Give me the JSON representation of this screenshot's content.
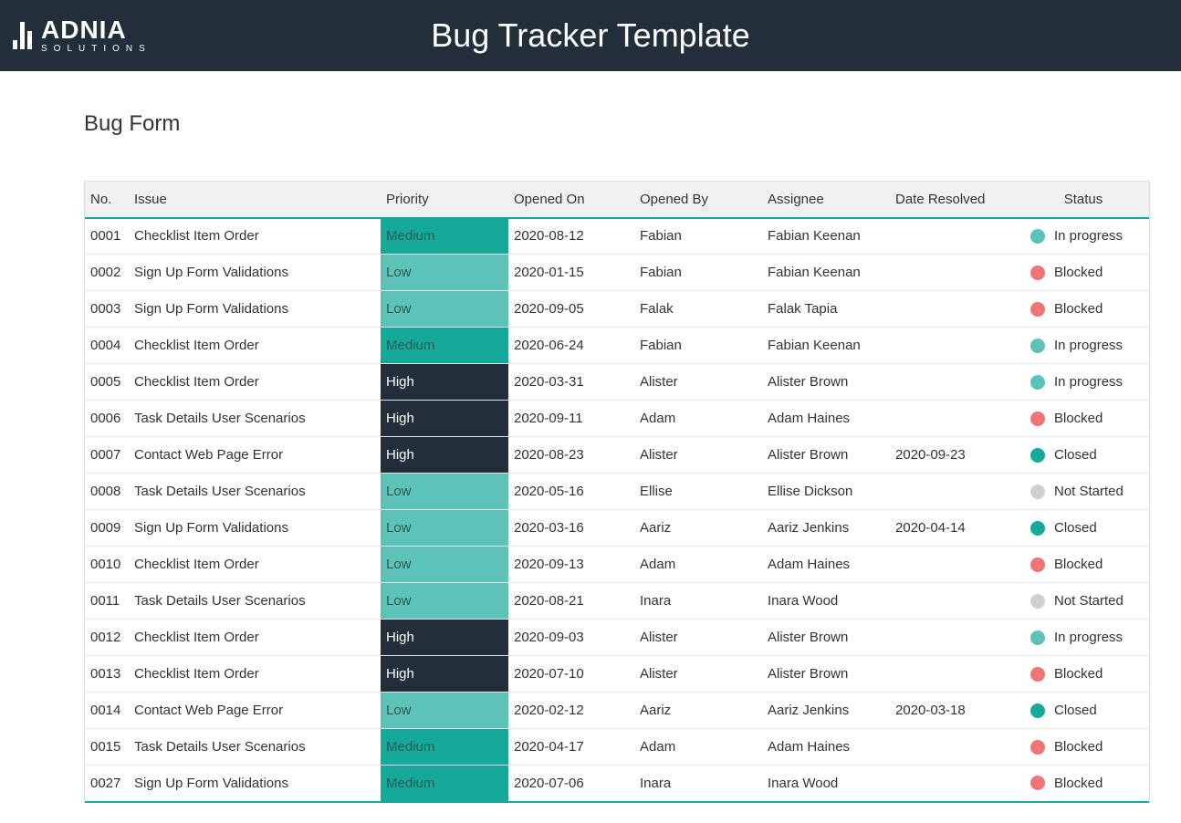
{
  "header": {
    "logo_main": "ADNIA",
    "logo_sub": "SOLUTIONS",
    "title": "Bug Tracker Template"
  },
  "section_title": "Bug Form",
  "colors": {
    "header_bg": "#222e3a",
    "accent": "#19a799",
    "priority_medium": "#14a999",
    "priority_low": "#5dc2b7",
    "priority_high": "#222e3a",
    "status_in_progress": "#5dc2b7",
    "status_blocked": "#f07575",
    "status_closed": "#14a999",
    "status_not_started": "#d0d0d0"
  },
  "table": {
    "columns": [
      "No.",
      "Issue",
      "Priority",
      "Opened On",
      "Opened By",
      "Assignee",
      "Date Resolved",
      "Status"
    ],
    "rows": [
      {
        "no": "0001",
        "issue": "Checklist Item Order",
        "priority": "Medium",
        "opened_on": "2020-08-12",
        "opened_by": "Fabian",
        "assignee": "Fabian Keenan",
        "date_resolved": "",
        "status": "In progress"
      },
      {
        "no": "0002",
        "issue": "Sign Up Form Validations",
        "priority": "Low",
        "opened_on": "2020-01-15",
        "opened_by": "Fabian",
        "assignee": "Fabian Keenan",
        "date_resolved": "",
        "status": "Blocked"
      },
      {
        "no": "0003",
        "issue": "Sign Up Form Validations",
        "priority": "Low",
        "opened_on": "2020-09-05",
        "opened_by": "Falak",
        "assignee": "Falak Tapia",
        "date_resolved": "",
        "status": "Blocked"
      },
      {
        "no": "0004",
        "issue": "Checklist Item Order",
        "priority": "Medium",
        "opened_on": "2020-06-24",
        "opened_by": "Fabian",
        "assignee": "Fabian Keenan",
        "date_resolved": "",
        "status": "In progress"
      },
      {
        "no": "0005",
        "issue": "Checklist Item Order",
        "priority": "High",
        "opened_on": "2020-03-31",
        "opened_by": "Alister",
        "assignee": "Alister Brown",
        "date_resolved": "",
        "status": "In progress"
      },
      {
        "no": "0006",
        "issue": "Task Details User Scenarios",
        "priority": "High",
        "opened_on": "2020-09-11",
        "opened_by": "Adam",
        "assignee": "Adam Haines",
        "date_resolved": "",
        "status": "Blocked"
      },
      {
        "no": "0007",
        "issue": "Contact Web Page Error",
        "priority": "High",
        "opened_on": "2020-08-23",
        "opened_by": "Alister",
        "assignee": "Alister Brown",
        "date_resolved": "2020-09-23",
        "status": "Closed"
      },
      {
        "no": "0008",
        "issue": "Task Details User Scenarios",
        "priority": "Low",
        "opened_on": "2020-05-16",
        "opened_by": "Ellise",
        "assignee": "Ellise Dickson",
        "date_resolved": "",
        "status": "Not Started"
      },
      {
        "no": "0009",
        "issue": "Sign Up Form Validations",
        "priority": "Low",
        "opened_on": "2020-03-16",
        "opened_by": "Aariz",
        "assignee": "Aariz Jenkins",
        "date_resolved": "2020-04-14",
        "status": "Closed"
      },
      {
        "no": "0010",
        "issue": "Checklist Item Order",
        "priority": "Low",
        "opened_on": "2020-09-13",
        "opened_by": "Adam",
        "assignee": "Adam Haines",
        "date_resolved": "",
        "status": "Blocked"
      },
      {
        "no": "0011",
        "issue": "Task Details User Scenarios",
        "priority": "Low",
        "opened_on": "2020-08-21",
        "opened_by": "Inara",
        "assignee": "Inara Wood",
        "date_resolved": "",
        "status": "Not Started"
      },
      {
        "no": "0012",
        "issue": "Checklist Item Order",
        "priority": "High",
        "opened_on": "2020-09-03",
        "opened_by": "Alister",
        "assignee": "Alister Brown",
        "date_resolved": "",
        "status": "In progress"
      },
      {
        "no": "0013",
        "issue": "Checklist Item Order",
        "priority": "High",
        "opened_on": "2020-07-10",
        "opened_by": "Alister",
        "assignee": "Alister Brown",
        "date_resolved": "",
        "status": "Blocked"
      },
      {
        "no": "0014",
        "issue": "Contact Web Page Error",
        "priority": "Low",
        "opened_on": "2020-02-12",
        "opened_by": "Aariz",
        "assignee": "Aariz Jenkins",
        "date_resolved": "2020-03-18",
        "status": "Closed"
      },
      {
        "no": "0015",
        "issue": "Task Details User Scenarios",
        "priority": "Medium",
        "opened_on": "2020-04-17",
        "opened_by": "Adam",
        "assignee": "Adam Haines",
        "date_resolved": "",
        "status": "Blocked"
      },
      {
        "no": "0027",
        "issue": "Sign Up Form Validations",
        "priority": "Medium",
        "opened_on": "2020-07-06",
        "opened_by": "Inara",
        "assignee": "Inara Wood",
        "date_resolved": "",
        "status": "Blocked"
      }
    ]
  }
}
